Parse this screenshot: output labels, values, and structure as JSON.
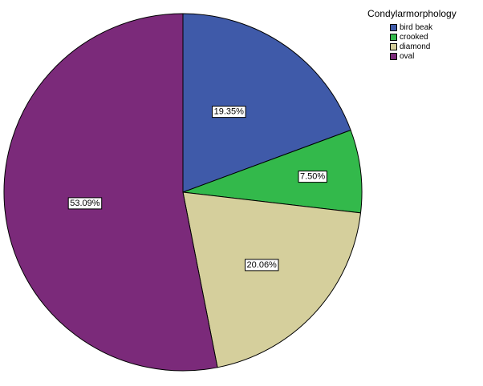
{
  "chart_data": {
    "type": "pie",
    "categories": [
      "bird beak",
      "crooked",
      "diamond",
      "oval"
    ],
    "values": [
      19.35,
      7.5,
      20.06,
      53.09
    ],
    "data_labels": [
      "19.35%",
      "7.50%",
      "20.06%",
      "53.09%"
    ],
    "colors": [
      "#3f5aa9",
      "#33b94b",
      "#d5cf9c",
      "#7b2a7a"
    ],
    "legend_title": "Condylarmorphology",
    "legend_position": "top-right",
    "start_angle": "12 o'clock",
    "direction": "clockwise"
  }
}
